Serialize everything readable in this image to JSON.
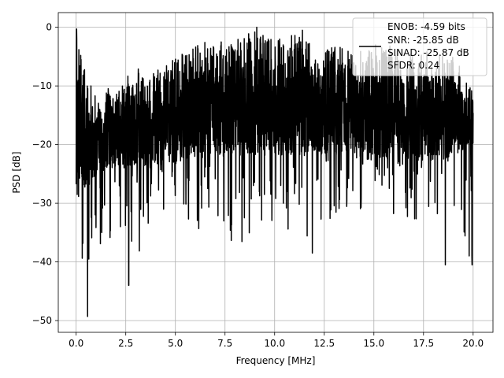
{
  "chart_data": {
    "type": "line",
    "xlabel": "Frequency [MHz]",
    "ylabel": "PSD [dB]",
    "xlim": [
      -0.9,
      21.0
    ],
    "ylim": [
      -52,
      2.5
    ],
    "xticks": [
      0.0,
      2.5,
      5.0,
      7.5,
      10.0,
      12.5,
      15.0,
      17.5,
      20.0
    ],
    "xtick_labels": [
      "0.0",
      "2.5",
      "5.0",
      "7.5",
      "10.0",
      "12.5",
      "15.0",
      "17.5",
      "20.0"
    ],
    "yticks": [
      0,
      -10,
      -20,
      -30,
      -40,
      -50
    ],
    "ytick_labels": [
      "0",
      "−10",
      "−20",
      "−30",
      "−40",
      "−50"
    ],
    "grid": true,
    "legend_placement": "top-right",
    "legend_lines": [
      "ENOB: -4.59 bits",
      "SNR: -25.85 dB",
      "SINAD: -25.87 dB",
      "SFDR: 0.24"
    ],
    "series_color": "#000000",
    "x_range_data": [
      0.0,
      20.0
    ],
    "notable_points": [
      {
        "x": 0.02,
        "y": -0.3
      },
      {
        "x": 0.58,
        "y": -49.3
      },
      {
        "x": 2.65,
        "y": -44.0
      },
      {
        "x": 9.1,
        "y": 0.0
      },
      {
        "x": 11.4,
        "y": -0.5
      },
      {
        "x": 11.9,
        "y": -38.5
      },
      {
        "x": 18.6,
        "y": -40.5
      },
      {
        "x": 19.95,
        "y": -40.5
      }
    ],
    "envelope_samples": [
      {
        "x": 0.0,
        "top": -0.3,
        "mid_lo": -26,
        "min": -27
      },
      {
        "x": 0.5,
        "top": -8,
        "mid_lo": -28,
        "min": -49.3
      },
      {
        "x": 1.0,
        "top": -11,
        "mid_lo": -25,
        "min": -37
      },
      {
        "x": 2.0,
        "top": -10,
        "mid_lo": -24,
        "min": -38
      },
      {
        "x": 3.0,
        "top": -7,
        "mid_lo": -24,
        "min": -40
      },
      {
        "x": 4.0,
        "top": -7,
        "mid_lo": -24,
        "min": -31
      },
      {
        "x": 5.0,
        "top": -5,
        "mid_lo": -23,
        "min": -32
      },
      {
        "x": 6.0,
        "top": -3,
        "mid_lo": -22,
        "min": -35
      },
      {
        "x": 7.0,
        "top": -2,
        "mid_lo": -22,
        "min": -33
      },
      {
        "x": 8.0,
        "top": -2,
        "mid_lo": -22,
        "min": -38
      },
      {
        "x": 9.0,
        "top": 0,
        "mid_lo": -22,
        "min": -35
      },
      {
        "x": 10.0,
        "top": -2,
        "mid_lo": -22,
        "min": -34
      },
      {
        "x": 11.0,
        "top": -1,
        "mid_lo": -22,
        "min": -36
      },
      {
        "x": 12.0,
        "top": -3,
        "mid_lo": -22,
        "min": -38.5
      },
      {
        "x": 13.0,
        "top": -3,
        "mid_lo": -22,
        "min": -32
      },
      {
        "x": 14.0,
        "top": -3,
        "mid_lo": -22,
        "min": -31
      },
      {
        "x": 15.0,
        "top": -3,
        "mid_lo": -23,
        "min": -33
      },
      {
        "x": 16.0,
        "top": -3,
        "mid_lo": -23,
        "min": -32
      },
      {
        "x": 17.0,
        "top": -4,
        "mid_lo": -23,
        "min": -33
      },
      {
        "x": 18.0,
        "top": -4,
        "mid_lo": -23,
        "min": -32
      },
      {
        "x": 19.0,
        "top": -5,
        "mid_lo": -22,
        "min": -33
      },
      {
        "x": 20.0,
        "top": -10,
        "mid_lo": -20,
        "min": -40.5
      }
    ]
  }
}
